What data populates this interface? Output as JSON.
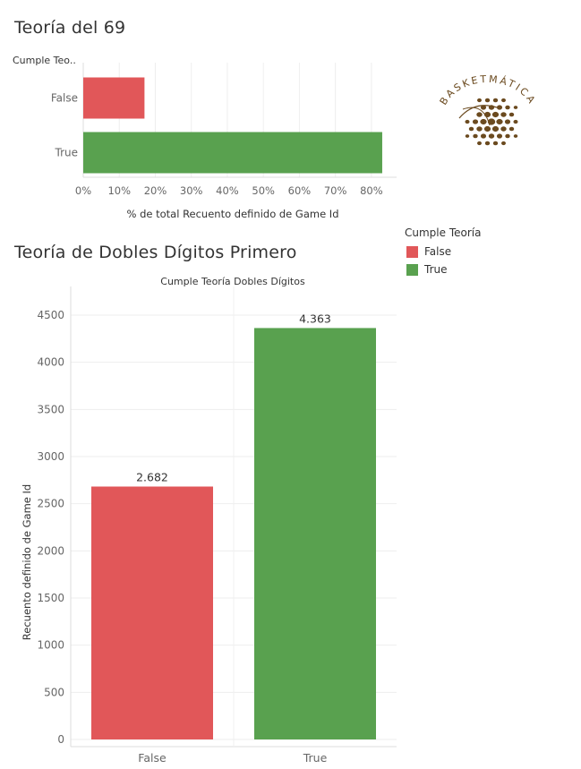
{
  "colors": {
    "false": "#e15759",
    "true": "#59a14f",
    "grid": "#eeeeee",
    "axis": "#888888"
  },
  "top": {
    "title": "Teoría del 69",
    "row_header": "Cumple Teo..",
    "x_axis_title": "% de total Recuento definido de Game Id"
  },
  "bottom": {
    "title": "Teoría de Dobles Dígitos Primero",
    "column_header": "Cumple Teoría Dobles Dígitos",
    "y_axis_title": "Recuento definido de Game Id"
  },
  "legend": {
    "title": "Cumple Teoría",
    "items": [
      {
        "label": "False",
        "color": "#e15759"
      },
      {
        "label": "True",
        "color": "#59a14f"
      }
    ]
  },
  "logo": {
    "text": "BASKETMÁTICA",
    "icon": "basketball-logo-icon"
  },
  "chart_data": [
    {
      "type": "bar",
      "orientation": "horizontal",
      "title": "Teoría del 69",
      "categories": [
        "False",
        "True"
      ],
      "values": [
        17,
        83
      ],
      "xlabel": "% de total Recuento definido de Game Id",
      "ylabel": "Cumple Teo..",
      "xlim": [
        0,
        85
      ],
      "ticks": [
        0,
        10,
        20,
        30,
        40,
        50,
        60,
        70,
        80
      ],
      "tick_labels": [
        "0%",
        "10%",
        "20%",
        "30%",
        "40%",
        "50%",
        "60%",
        "70%",
        "80%"
      ],
      "grid": true,
      "legend": "right"
    },
    {
      "type": "bar",
      "orientation": "vertical",
      "title": "Teoría de Dobles Dígitos Primero",
      "categories": [
        "False",
        "True"
      ],
      "values": [
        2682,
        4363
      ],
      "data_labels": [
        "2.682",
        "4.363"
      ],
      "xlabel": "Cumple Teoría Dobles Dígitos",
      "ylabel": "Recuento definido de Game Id",
      "ylim": [
        0,
        4800
      ],
      "ticks": [
        0,
        500,
        1000,
        1500,
        2000,
        2500,
        3000,
        3500,
        4000,
        4500
      ],
      "tick_labels": [
        "0",
        "500",
        "1000",
        "1500",
        "2000",
        "2500",
        "3000",
        "3500",
        "4000",
        "4500"
      ],
      "grid": true,
      "legend": "right"
    }
  ]
}
